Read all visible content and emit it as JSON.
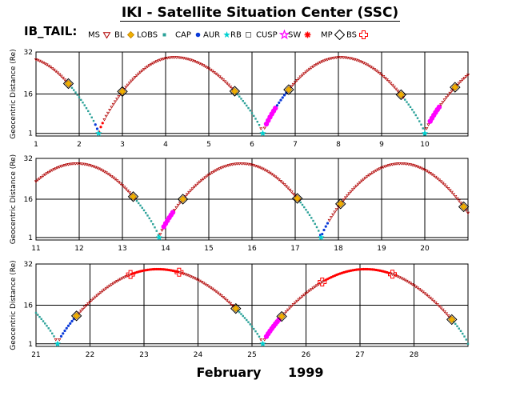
{
  "header": {
    "title": "IKI - Satellite Situation Center (SSC)"
  },
  "legend": {
    "label": "IB_TAIL:",
    "items": [
      {
        "name": "MS",
        "symbol": "triangle-down",
        "color": "#b00000"
      },
      {
        "name": "BL",
        "symbol": "diamond",
        "color": "#f0b000"
      },
      {
        "name": "LOBS",
        "symbol": "square",
        "color": "#2aa198"
      },
      {
        "name": "CAP",
        "symbol": "dot",
        "color": "#0a3ad8"
      },
      {
        "name": "AUR",
        "symbol": "star",
        "color": "#00d0d0"
      },
      {
        "name": "RB",
        "symbol": "square-open",
        "color": "#555555"
      },
      {
        "name": "CUSP",
        "symbol": "star-open",
        "color": "#ff00ff"
      },
      {
        "name": "SW",
        "symbol": "asterisk",
        "color": "#ff0000"
      },
      {
        "name": "MP",
        "symbol": "diamond-open",
        "color": "#000000"
      },
      {
        "name": "BS",
        "symbol": "cross-open",
        "color": "#ff0000"
      }
    ]
  },
  "footer": {
    "month": "February",
    "year": "1999"
  },
  "chart_data": [
    {
      "type": "line",
      "ylabel": "Geocentric Distance (Re)",
      "xlim": [
        1,
        11
      ],
      "ylim": [
        0,
        32
      ],
      "yticks": [
        1,
        16,
        32
      ],
      "xticks": [
        1,
        2,
        3,
        4,
        5,
        6,
        7,
        8,
        9,
        10
      ],
      "apogees": [
        4.2,
        8.05
      ],
      "perigees": [
        2.45,
        6.25,
        10.0
      ],
      "segments": [
        {
          "region": "MS",
          "x": [
            1.0,
            1.8
          ]
        },
        {
          "region": "LOBS",
          "x": [
            1.8,
            2.35
          ]
        },
        {
          "region": "CAP",
          "x": [
            2.35,
            2.45
          ]
        },
        {
          "region": "SW",
          "x": [
            2.45,
            2.55
          ]
        },
        {
          "region": "MS",
          "x": [
            3.0,
            5.6
          ]
        },
        {
          "region": "LOBS",
          "x": [
            5.6,
            6.2
          ]
        },
        {
          "region": "CUSP",
          "x": [
            6.3,
            6.55
          ]
        },
        {
          "region": "CAP",
          "x": [
            6.55,
            6.8
          ]
        },
        {
          "region": "MS",
          "x": [
            6.85,
            9.5
          ]
        },
        {
          "region": "LOBS",
          "x": [
            9.5,
            10.0
          ]
        },
        {
          "region": "CUSP",
          "x": [
            10.1,
            10.35
          ]
        },
        {
          "region": "MS",
          "x": [
            10.7,
            11.0
          ]
        }
      ],
      "bs_crossings": [
        1.75,
        3.0,
        5.6,
        6.85,
        9.45,
        10.7
      ]
    },
    {
      "type": "line",
      "ylabel": "Geocentric Distance (Re)",
      "xlim": [
        11,
        21
      ],
      "ylim": [
        0,
        32
      ],
      "yticks": [
        1,
        16,
        32
      ],
      "xticks": [
        11,
        12,
        13,
        14,
        15,
        16,
        17,
        18,
        19,
        20
      ],
      "apogees": [
        11.95,
        15.75,
        19.45
      ],
      "perigees": [
        13.85,
        17.6
      ],
      "segments": [
        {
          "region": "MS",
          "x": [
            11.0,
            13.3
          ]
        },
        {
          "region": "LOBS",
          "x": [
            13.3,
            13.85
          ]
        },
        {
          "region": "CUSP",
          "x": [
            13.95,
            14.2
          ]
        },
        {
          "region": "MS",
          "x": [
            14.35,
            17.1
          ]
        },
        {
          "region": "LOBS",
          "x": [
            17.1,
            17.55
          ]
        },
        {
          "region": "CAP",
          "x": [
            17.55,
            17.75
          ]
        },
        {
          "region": "MS",
          "x": [
            18.05,
            20.9
          ]
        }
      ],
      "bs_crossings": [
        13.25,
        14.4,
        17.05,
        18.05,
        20.9
      ]
    },
    {
      "type": "line",
      "ylabel": "Geocentric Distance (Re)",
      "xlim": [
        21,
        29
      ],
      "ylim": [
        0,
        32
      ],
      "yticks": [
        1,
        16,
        32
      ],
      "xticks": [
        21,
        22,
        23,
        24,
        25,
        26,
        27,
        28
      ],
      "apogees": [
        23.25,
        27.1
      ],
      "perigees": [
        21.4,
        25.2
      ],
      "segments": [
        {
          "region": "LOBS",
          "x": [
            21.0,
            21.35
          ]
        },
        {
          "region": "CAP",
          "x": [
            21.45,
            21.75
          ]
        },
        {
          "region": "MS",
          "x": [
            21.8,
            22.7
          ]
        },
        {
          "region": "SW",
          "x": [
            22.75,
            23.65
          ]
        },
        {
          "region": "MS",
          "x": [
            23.7,
            24.7
          ]
        },
        {
          "region": "LOBS",
          "x": [
            24.7,
            25.15
          ]
        },
        {
          "region": "CUSP",
          "x": [
            25.25,
            25.5
          ]
        },
        {
          "region": "MS",
          "x": [
            25.55,
            26.3
          ]
        },
        {
          "region": "SW",
          "x": [
            26.35,
            27.55
          ]
        },
        {
          "region": "MS",
          "x": [
            27.6,
            28.7
          ]
        },
        {
          "region": "LOBS",
          "x": [
            28.7,
            29.0
          ]
        }
      ],
      "bs_crossings": [
        21.75,
        24.7,
        25.55,
        28.7
      ],
      "mp_crossings": [
        22.75,
        23.65,
        26.3,
        27.6
      ]
    }
  ]
}
